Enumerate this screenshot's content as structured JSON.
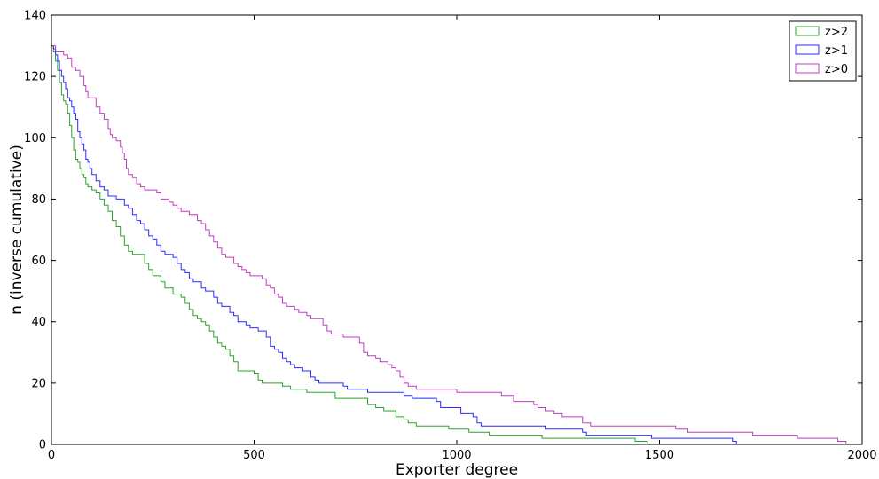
{
  "chart_data": {
    "type": "line",
    "title": "",
    "xlabel": "Exporter degree",
    "ylabel": "n (inverse cumulative)",
    "xlim": [
      0,
      2000
    ],
    "ylim": [
      0,
      140
    ],
    "xticks": [
      0,
      500,
      1000,
      1500,
      2000
    ],
    "yticks": [
      0,
      20,
      40,
      60,
      80,
      100,
      120,
      140
    ],
    "grid": false,
    "legend_position": "top-right",
    "series": [
      {
        "name": "z>2",
        "color": "#2ca02c",
        "points": [
          [
            0,
            130
          ],
          [
            5,
            128
          ],
          [
            10,
            125
          ],
          [
            15,
            122
          ],
          [
            20,
            118
          ],
          [
            25,
            114
          ],
          [
            30,
            112
          ],
          [
            35,
            111
          ],
          [
            40,
            108
          ],
          [
            45,
            104
          ],
          [
            50,
            100
          ],
          [
            55,
            96
          ],
          [
            60,
            93
          ],
          [
            65,
            92
          ],
          [
            70,
            90
          ],
          [
            75,
            88
          ],
          [
            80,
            87
          ],
          [
            85,
            85
          ],
          [
            90,
            84
          ],
          [
            100,
            83
          ],
          [
            110,
            82
          ],
          [
            120,
            80
          ],
          [
            130,
            78
          ],
          [
            140,
            76
          ],
          [
            150,
            73
          ],
          [
            160,
            71
          ],
          [
            170,
            68
          ],
          [
            180,
            65
          ],
          [
            190,
            63
          ],
          [
            200,
            62
          ],
          [
            230,
            59
          ],
          [
            240,
            57
          ],
          [
            250,
            55
          ],
          [
            270,
            53
          ],
          [
            280,
            51
          ],
          [
            300,
            49
          ],
          [
            320,
            48
          ],
          [
            330,
            46
          ],
          [
            340,
            44
          ],
          [
            350,
            42
          ],
          [
            360,
            41
          ],
          [
            370,
            40
          ],
          [
            380,
            39
          ],
          [
            390,
            37
          ],
          [
            400,
            35
          ],
          [
            410,
            33
          ],
          [
            420,
            32
          ],
          [
            430,
            31
          ],
          [
            440,
            29
          ],
          [
            450,
            27
          ],
          [
            460,
            24
          ],
          [
            500,
            23
          ],
          [
            510,
            21
          ],
          [
            520,
            20
          ],
          [
            570,
            19
          ],
          [
            590,
            18
          ],
          [
            630,
            17
          ],
          [
            700,
            15
          ],
          [
            780,
            13
          ],
          [
            800,
            12
          ],
          [
            820,
            11
          ],
          [
            850,
            9
          ],
          [
            870,
            8
          ],
          [
            880,
            7
          ],
          [
            900,
            6
          ],
          [
            980,
            5
          ],
          [
            1030,
            4
          ],
          [
            1080,
            3
          ],
          [
            1210,
            2
          ],
          [
            1440,
            1
          ],
          [
            1470,
            0
          ]
        ]
      },
      {
        "name": "z>1",
        "color": "#2b2bff",
        "points": [
          [
            0,
            130
          ],
          [
            5,
            129
          ],
          [
            10,
            127
          ],
          [
            15,
            125
          ],
          [
            20,
            122
          ],
          [
            25,
            120
          ],
          [
            30,
            118
          ],
          [
            35,
            116
          ],
          [
            40,
            113
          ],
          [
            45,
            112
          ],
          [
            50,
            110
          ],
          [
            55,
            108
          ],
          [
            60,
            106
          ],
          [
            65,
            102
          ],
          [
            70,
            100
          ],
          [
            75,
            98
          ],
          [
            80,
            96
          ],
          [
            85,
            93
          ],
          [
            90,
            92
          ],
          [
            95,
            90
          ],
          [
            100,
            88
          ],
          [
            110,
            86
          ],
          [
            120,
            84
          ],
          [
            130,
            83
          ],
          [
            140,
            81
          ],
          [
            160,
            80
          ],
          [
            180,
            78
          ],
          [
            190,
            77
          ],
          [
            200,
            75
          ],
          [
            210,
            73
          ],
          [
            220,
            72
          ],
          [
            230,
            70
          ],
          [
            240,
            68
          ],
          [
            250,
            67
          ],
          [
            260,
            65
          ],
          [
            270,
            63
          ],
          [
            280,
            62
          ],
          [
            300,
            61
          ],
          [
            310,
            59
          ],
          [
            320,
            57
          ],
          [
            330,
            56
          ],
          [
            340,
            54
          ],
          [
            350,
            53
          ],
          [
            370,
            51
          ],
          [
            380,
            50
          ],
          [
            400,
            48
          ],
          [
            410,
            46
          ],
          [
            420,
            45
          ],
          [
            440,
            43
          ],
          [
            450,
            42
          ],
          [
            460,
            40
          ],
          [
            480,
            39
          ],
          [
            490,
            38
          ],
          [
            510,
            37
          ],
          [
            530,
            35
          ],
          [
            540,
            32
          ],
          [
            550,
            31
          ],
          [
            560,
            30
          ],
          [
            570,
            28
          ],
          [
            580,
            27
          ],
          [
            590,
            26
          ],
          [
            600,
            25
          ],
          [
            620,
            24
          ],
          [
            640,
            22
          ],
          [
            650,
            21
          ],
          [
            660,
            20
          ],
          [
            720,
            19
          ],
          [
            730,
            18
          ],
          [
            780,
            17
          ],
          [
            870,
            16
          ],
          [
            890,
            15
          ],
          [
            950,
            14
          ],
          [
            960,
            12
          ],
          [
            1010,
            10
          ],
          [
            1040,
            9
          ],
          [
            1050,
            7
          ],
          [
            1060,
            6
          ],
          [
            1220,
            5
          ],
          [
            1310,
            4
          ],
          [
            1320,
            3
          ],
          [
            1480,
            2
          ],
          [
            1680,
            1
          ],
          [
            1690,
            0
          ]
        ]
      },
      {
        "name": "z>0",
        "color": "#bf3fbf",
        "points": [
          [
            0,
            130
          ],
          [
            10,
            128
          ],
          [
            30,
            127
          ],
          [
            40,
            126
          ],
          [
            50,
            123
          ],
          [
            60,
            122
          ],
          [
            70,
            120
          ],
          [
            80,
            117
          ],
          [
            85,
            115
          ],
          [
            90,
            113
          ],
          [
            100,
            113
          ],
          [
            110,
            110
          ],
          [
            120,
            108
          ],
          [
            130,
            106
          ],
          [
            140,
            103
          ],
          [
            145,
            101
          ],
          [
            150,
            100
          ],
          [
            160,
            99
          ],
          [
            170,
            97
          ],
          [
            175,
            95
          ],
          [
            180,
            93
          ],
          [
            185,
            90
          ],
          [
            190,
            88
          ],
          [
            200,
            87
          ],
          [
            210,
            85
          ],
          [
            220,
            84
          ],
          [
            230,
            83
          ],
          [
            260,
            82
          ],
          [
            270,
            80
          ],
          [
            290,
            79
          ],
          [
            300,
            78
          ],
          [
            310,
            77
          ],
          [
            320,
            76
          ],
          [
            340,
            75
          ],
          [
            360,
            73
          ],
          [
            370,
            72
          ],
          [
            380,
            70
          ],
          [
            390,
            68
          ],
          [
            400,
            66
          ],
          [
            410,
            64
          ],
          [
            420,
            62
          ],
          [
            430,
            61
          ],
          [
            450,
            59
          ],
          [
            460,
            58
          ],
          [
            470,
            57
          ],
          [
            480,
            56
          ],
          [
            490,
            55
          ],
          [
            520,
            54
          ],
          [
            530,
            52
          ],
          [
            540,
            51
          ],
          [
            550,
            49
          ],
          [
            560,
            48
          ],
          [
            570,
            46
          ],
          [
            580,
            45
          ],
          [
            600,
            44
          ],
          [
            610,
            43
          ],
          [
            630,
            42
          ],
          [
            640,
            41
          ],
          [
            670,
            39
          ],
          [
            680,
            37
          ],
          [
            690,
            36
          ],
          [
            720,
            35
          ],
          [
            760,
            33
          ],
          [
            770,
            30
          ],
          [
            780,
            29
          ],
          [
            800,
            28
          ],
          [
            810,
            27
          ],
          [
            830,
            26
          ],
          [
            840,
            25
          ],
          [
            850,
            24
          ],
          [
            860,
            22
          ],
          [
            870,
            20
          ],
          [
            880,
            19
          ],
          [
            900,
            18
          ],
          [
            1000,
            17
          ],
          [
            1110,
            16
          ],
          [
            1140,
            14
          ],
          [
            1190,
            13
          ],
          [
            1200,
            12
          ],
          [
            1220,
            11
          ],
          [
            1240,
            10
          ],
          [
            1260,
            9
          ],
          [
            1310,
            7
          ],
          [
            1330,
            6
          ],
          [
            1540,
            5
          ],
          [
            1570,
            4
          ],
          [
            1730,
            3
          ],
          [
            1840,
            2
          ],
          [
            1940,
            1
          ],
          [
            1960,
            0
          ]
        ]
      }
    ]
  }
}
